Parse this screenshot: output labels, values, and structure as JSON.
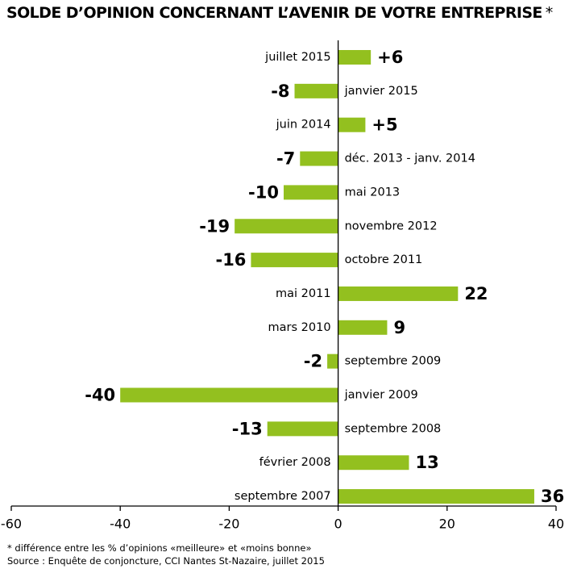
{
  "title": "SOLDE D’OPINION CONCERNANT L’AVENIR DE VOTRE ENTREPRISE",
  "title_mark": "*",
  "footnotes": {
    "note": "* différence entre les % d’opinions «meilleure» et «moins bonne»",
    "source": "Source : Enquête de conjoncture, CCI Nantes St-Nazaire, juillet 2015"
  },
  "colors": {
    "bar": "#93c01f",
    "axis": "#000000",
    "text": "#000000"
  },
  "chart_data": {
    "type": "bar",
    "orientation": "horizontal",
    "categories": [
      "juillet 2015",
      "janvier 2015",
      "juin 2014",
      "déc. 2013 - janv. 2014",
      "mai 2013",
      "novembre 2012",
      "octobre 2011",
      "mai 2011",
      "mars 2010",
      "septembre 2009",
      "janvier 2009",
      "septembre 2008",
      "février 2008",
      "septembre 2007"
    ],
    "values": [
      6,
      -8,
      5,
      -7,
      -10,
      -19,
      -16,
      22,
      9,
      -2,
      -40,
      -13,
      13,
      36
    ],
    "value_labels": [
      "+6",
      "-8",
      "+5",
      "-7",
      "-10",
      "-19",
      "-16",
      "22",
      "9",
      "-2",
      "-40",
      "-13",
      "13",
      "36"
    ],
    "xlim": [
      -60,
      40
    ],
    "xticks": [
      -60,
      -40,
      -20,
      0,
      20,
      40
    ],
    "xtick_labels": [
      "-60",
      "-40",
      "-20",
      "0",
      "20",
      "40"
    ],
    "xlabel": "",
    "ylabel": "",
    "grid": false,
    "legend": "none"
  }
}
